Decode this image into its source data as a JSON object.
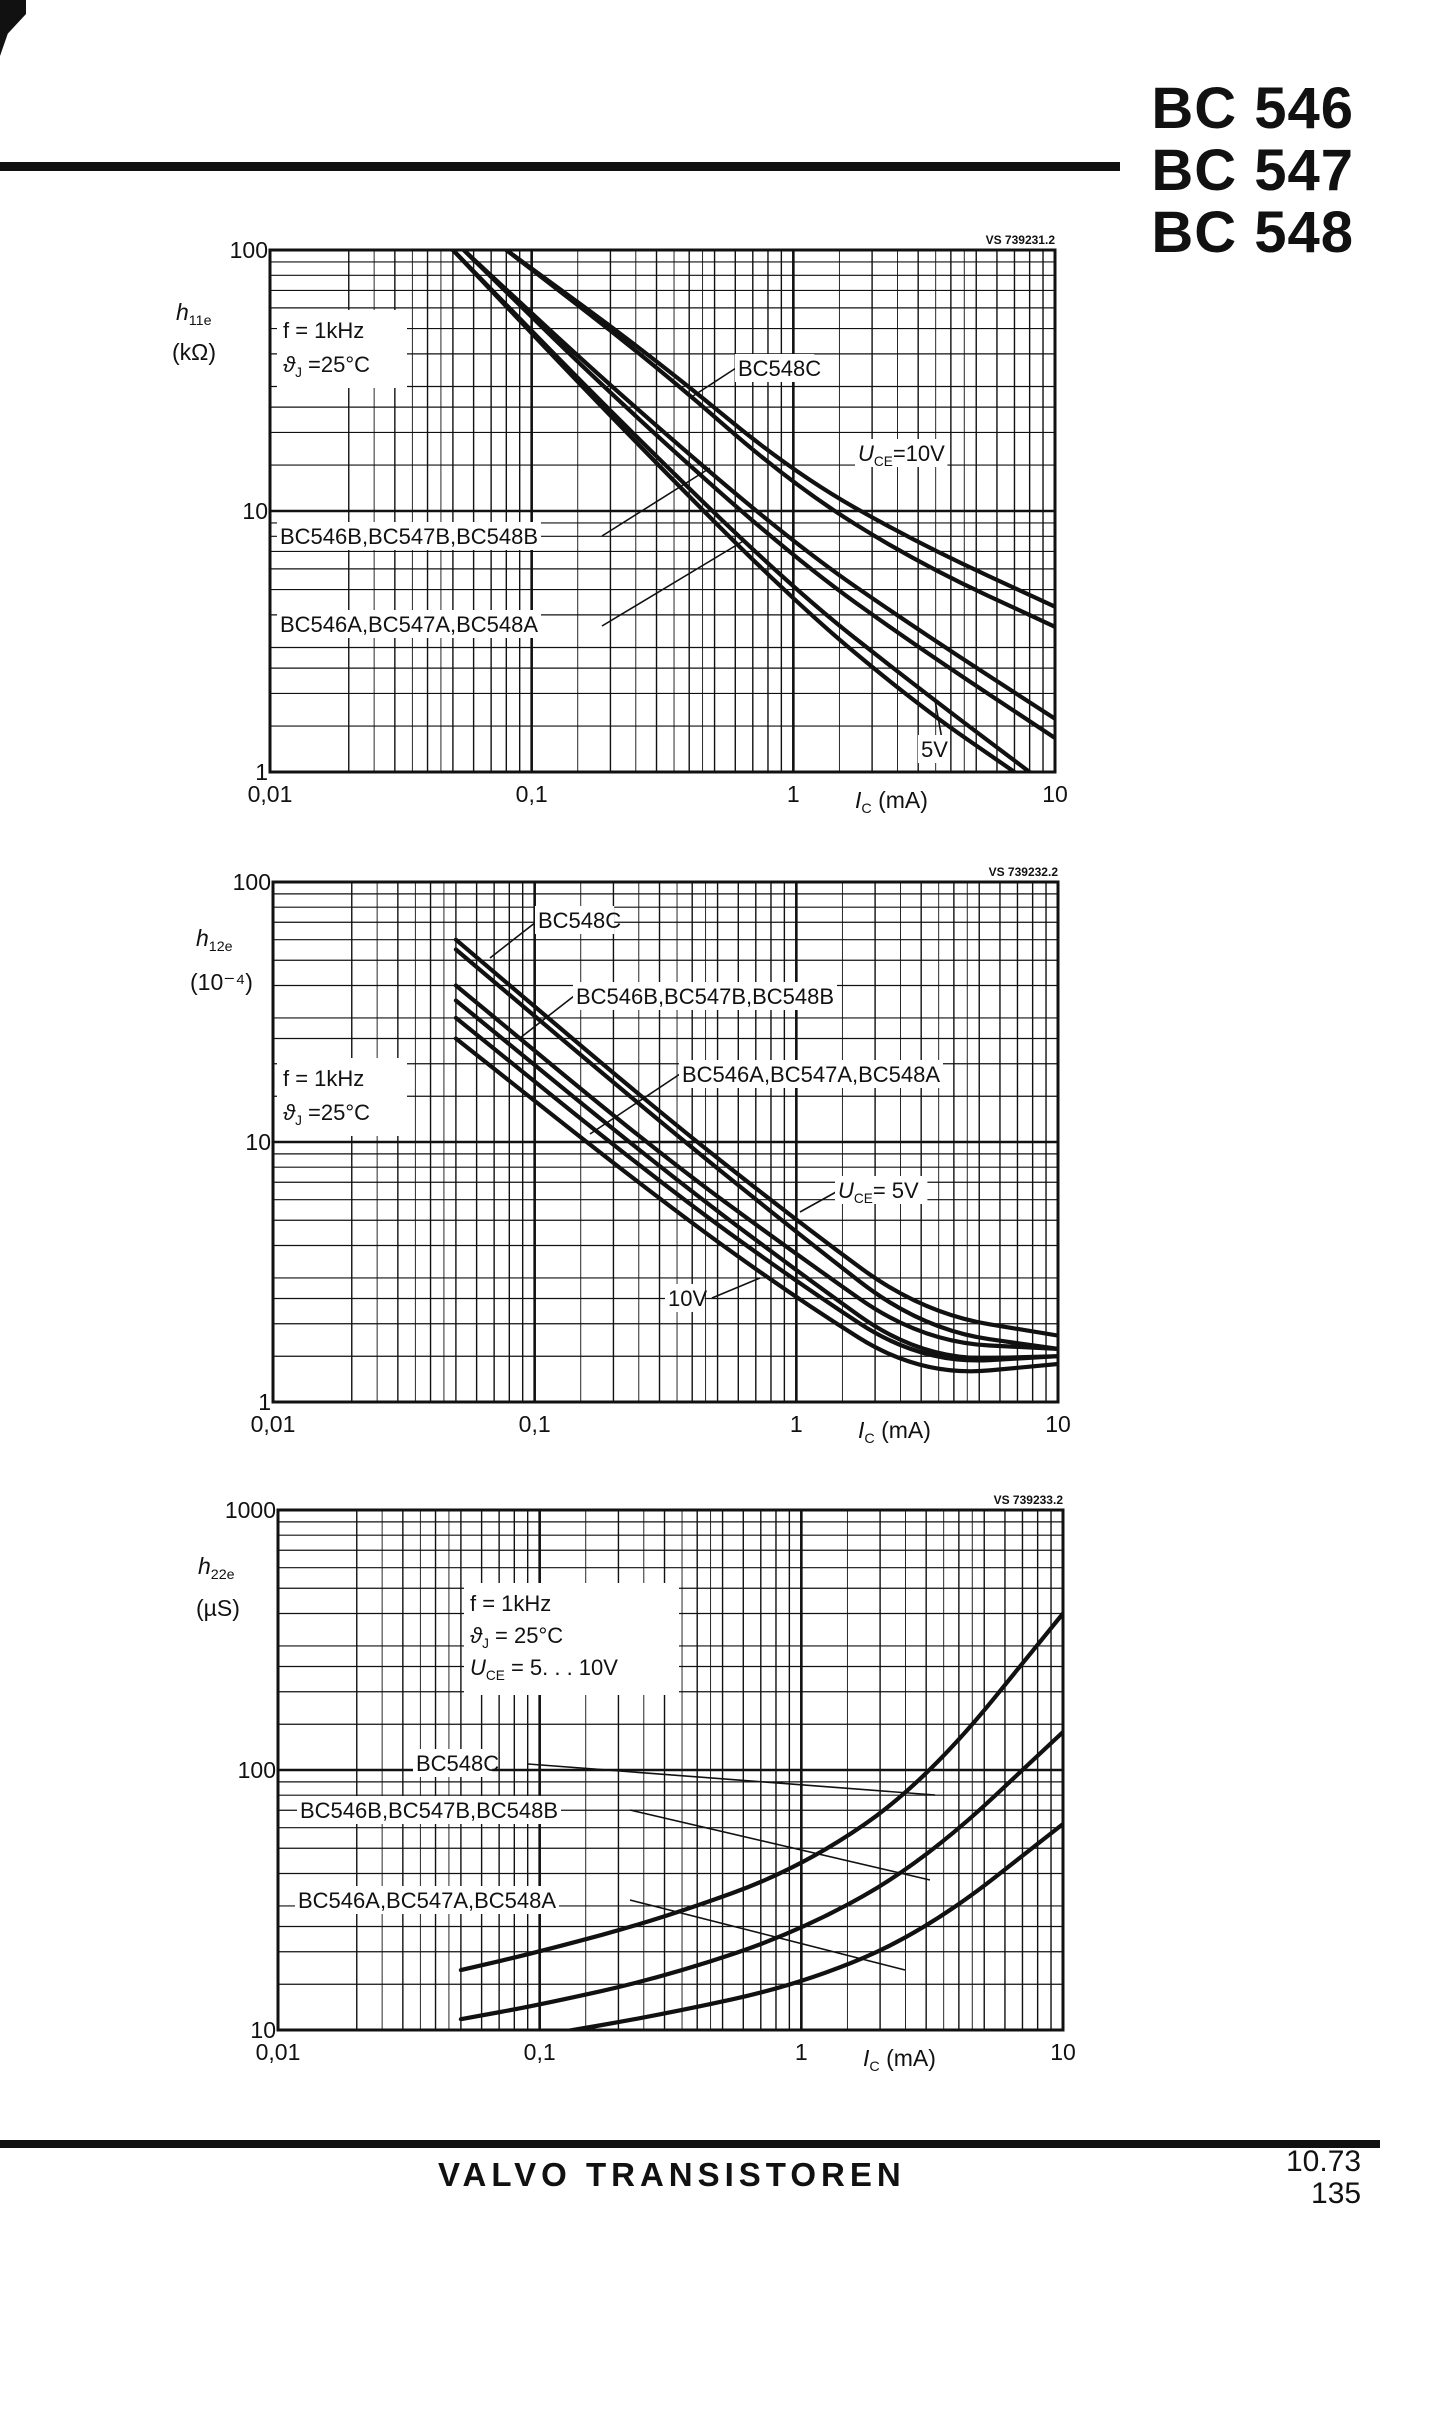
{
  "header": {
    "titles": [
      "BC 546",
      "BC 547",
      "BC 548"
    ]
  },
  "footer": {
    "brand": "VALVO TRANSISTOREN",
    "date": "10.73",
    "page": "135"
  },
  "chart_data": [
    {
      "type": "line",
      "figure_code": "VS 739231.2",
      "ylabel": "h11e",
      "yunit": "(kΩ)",
      "xlabel": "IC (mA)",
      "xlog": true,
      "ylog": true,
      "xlim": [
        0.01,
        10
      ],
      "ylim": [
        1,
        100
      ],
      "x_ticks": [
        "0,01",
        "0,1",
        "1",
        "10"
      ],
      "y_ticks": [
        "1",
        "10",
        "100"
      ],
      "conditions": [
        "f  =  1kHz",
        "ϑJ =25°C"
      ],
      "annotations": [
        "BC548C",
        "UCE=10V",
        "BC546B,BC547B,BC548B",
        "BC546A,BC547A,BC548A",
        "5V"
      ],
      "series": [
        {
          "group": "C",
          "uce": "10V",
          "x": [
            0.08,
            0.3,
            1,
            3,
            10
          ],
          "y": [
            100,
            38,
            14,
            7.5,
            4.3
          ]
        },
        {
          "group": "C",
          "uce": "5V",
          "x": [
            0.08,
            0.3,
            1,
            3,
            10
          ],
          "y": [
            100,
            36,
            12.5,
            6.3,
            3.6
          ]
        },
        {
          "group": "B",
          "uce": "10V",
          "x": [
            0.055,
            0.2,
            1,
            3,
            10
          ],
          "y": [
            100,
            30,
            7.5,
            3.5,
            1.6
          ]
        },
        {
          "group": "B",
          "uce": "5V",
          "x": [
            0.055,
            0.2,
            1,
            3,
            10
          ],
          "y": [
            100,
            28,
            6.6,
            3.0,
            1.35
          ]
        },
        {
          "group": "A",
          "uce": "10V",
          "x": [
            0.05,
            0.2,
            1,
            3,
            8
          ],
          "y": [
            100,
            24,
            5.0,
            2.1,
            1.0
          ]
        },
        {
          "group": "A",
          "uce": "5V",
          "x": [
            0.05,
            0.2,
            1,
            3,
            7
          ],
          "y": [
            100,
            23,
            4.5,
            1.8,
            1.0
          ]
        }
      ]
    },
    {
      "type": "line",
      "figure_code": "VS 739232.2",
      "ylabel": "h12e",
      "yunit": "(10⁻⁴)",
      "xlabel": "IC (mA)",
      "xlog": true,
      "ylog": true,
      "xlim": [
        0.01,
        10
      ],
      "ylim": [
        1,
        100
      ],
      "x_ticks": [
        "0,01",
        "0,1",
        "1",
        "10"
      ],
      "y_ticks": [
        "1",
        "10",
        "100"
      ],
      "conditions": [
        "f  =  1kHz",
        "ϑJ =25°C"
      ],
      "annotations": [
        "BC548C",
        "BC546B,BC547B,BC548B",
        "BC546A,BC547A,BC548A",
        "UCE= 5V",
        "10V"
      ],
      "series": [
        {
          "group": "C",
          "uce": "5V",
          "x": [
            0.05,
            0.3,
            1,
            3,
            10
          ],
          "y": [
            60,
            13,
            5.0,
            2.2,
            1.8
          ]
        },
        {
          "group": "C",
          "uce": "10V",
          "x": [
            0.05,
            0.3,
            1,
            3,
            10
          ],
          "y": [
            55,
            12,
            4.5,
            1.9,
            1.6
          ]
        },
        {
          "group": "B",
          "uce": "5V",
          "x": [
            0.05,
            0.3,
            1,
            3,
            10
          ],
          "y": [
            40,
            9,
            3.7,
            1.7,
            1.6
          ]
        },
        {
          "group": "B",
          "uce": "10V",
          "x": [
            0.05,
            0.3,
            1,
            3,
            10
          ],
          "y": [
            35,
            8,
            3.2,
            1.45,
            1.5
          ]
        },
        {
          "group": "A",
          "uce": "5V",
          "x": [
            0.05,
            0.3,
            1,
            3,
            10
          ],
          "y": [
            30,
            7,
            2.9,
            1.4,
            1.5
          ]
        },
        {
          "group": "A",
          "uce": "10V",
          "x": [
            0.05,
            0.3,
            1,
            3,
            10
          ],
          "y": [
            25,
            6,
            2.5,
            1.25,
            1.4
          ]
        }
      ]
    },
    {
      "type": "line",
      "figure_code": "VS 739233.2",
      "ylabel": "h22e",
      "yunit": "(µS)",
      "xlabel": "IC (mA)",
      "xlog": true,
      "ylog": true,
      "xlim": [
        0.01,
        10
      ],
      "ylim": [
        10,
        1000
      ],
      "x_ticks": [
        "0,01",
        "0,1",
        "1",
        "10"
      ],
      "y_ticks": [
        "10",
        "100",
        "1000"
      ],
      "conditions": [
        "f      =      1kHz",
        "ϑJ   =      25°C",
        "UCE = 5. . . 10V"
      ],
      "annotations": [
        "BC548C",
        "BC546B,BC547B,BC548B",
        "BC546A,BC547A,BC548A"
      ],
      "series": [
        {
          "group": "C",
          "x": [
            0.05,
            0.1,
            0.3,
            1,
            3,
            10
          ],
          "y": [
            17,
            20,
            27,
            42,
            90,
            400
          ]
        },
        {
          "group": "B",
          "x": [
            0.05,
            0.1,
            0.3,
            1,
            3,
            10
          ],
          "y": [
            11,
            12.5,
            16,
            24,
            45,
            140
          ]
        },
        {
          "group": "A",
          "x": [
            0.05,
            0.1,
            0.3,
            1,
            3,
            10
          ],
          "y": [
            8.5,
            9.5,
            11.5,
            15,
            24,
            62
          ]
        }
      ]
    }
  ]
}
